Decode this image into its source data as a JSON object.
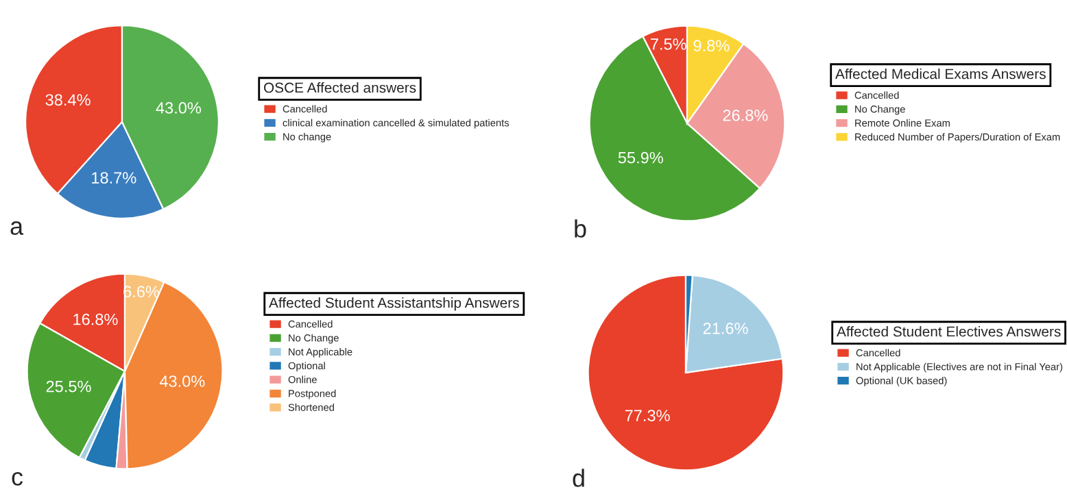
{
  "chart_data": [
    {
      "type": "pie",
      "legend_title": "OSCE Affected answers",
      "categories": [
        "Cancelled",
        "clinical examination cancelled & simulated patients",
        "No change"
      ],
      "values": [
        38.4,
        18.7,
        43.0
      ],
      "colors": [
        "#e8412c",
        "#3a7dbf",
        "#57b04f"
      ],
      "value_labels": [
        "38.4%",
        "18.7%",
        "43.0%"
      ],
      "legend": "right",
      "annotations": [
        "a"
      ]
    },
    {
      "type": "pie",
      "legend_title": "Affected Medical Exams Answers",
      "categories": [
        "Cancelled",
        "No Change",
        "Remote Online Exam",
        "Reduced Number of Papers/Duration of Exam"
      ],
      "values": [
        7.5,
        55.9,
        26.8,
        9.8
      ],
      "colors": [
        "#e8412c",
        "#4aa232",
        "#f19b9b",
        "#fbd535"
      ],
      "value_labels": [
        "7.5%",
        "55.9%",
        "26.8%",
        "9.8%"
      ],
      "legend": "right",
      "annotations": [
        "b"
      ]
    },
    {
      "type": "pie",
      "legend_title": "Affected Student Assistantship Answers",
      "categories": [
        "Cancelled",
        "No Change",
        "Not Applicable",
        "Optional",
        "Online",
        "Postponed",
        "Shortened"
      ],
      "values": [
        16.8,
        25.5,
        1.0,
        5.3,
        1.8,
        43.0,
        6.6
      ],
      "colors": [
        "#e8412c",
        "#4ba233",
        "#a6cee3",
        "#2178b4",
        "#f4999a",
        "#f28538",
        "#f9c27b"
      ],
      "value_labels": [
        "16.8%",
        "25.5%",
        null,
        null,
        null,
        "43.0%",
        "6.6%"
      ],
      "legend": "right",
      "annotations": [
        "c"
      ]
    },
    {
      "type": "pie",
      "legend_title": "Affected Student Electives Answers",
      "categories": [
        "Cancelled",
        "Not Applicable (Electives are not in Final Year)",
        "Optional (UK based)"
      ],
      "values": [
        77.3,
        21.6,
        1.1
      ],
      "colors": [
        "#e8402a",
        "#a6cee3",
        "#1f78b4"
      ],
      "value_labels": [
        "77.3%",
        "21.6%",
        null
      ],
      "legend": "right",
      "annotations": [
        "d"
      ]
    }
  ]
}
